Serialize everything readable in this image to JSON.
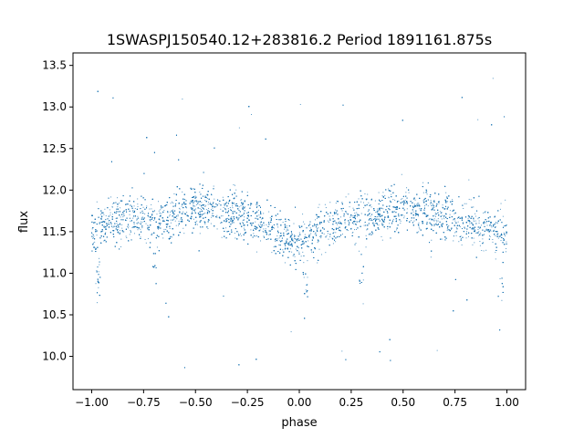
{
  "chart_data": {
    "type": "scatter",
    "title": "1SWASPJ150540.12+283816.2 Period 1891161.875s",
    "xlabel": "phase",
    "ylabel": "flux",
    "xlim": [
      -1.09,
      1.09
    ],
    "ylim": [
      9.6,
      13.65
    ],
    "x_ticks": [
      -1.0,
      -0.75,
      -0.5,
      -0.25,
      0.0,
      0.25,
      0.5,
      0.75,
      1.0
    ],
    "x_tick_labels": [
      "−1.00",
      "−0.75",
      "−0.50",
      "−0.25",
      "0.00",
      "0.25",
      "0.50",
      "0.75",
      "1.00"
    ],
    "y_ticks": [
      10.0,
      10.5,
      11.0,
      11.5,
      12.0,
      12.5,
      13.0,
      13.5
    ],
    "y_tick_labels": [
      "10.0",
      "10.5",
      "11.0",
      "11.5",
      "12.0",
      "12.5",
      "13.0",
      "13.5"
    ],
    "grid": false,
    "marker_color": "#1f77b4",
    "series": [
      {
        "x_range": [
          -1.0,
          1.0
        ],
        "sampled_median_curve": {
          "x": [
            -1.0,
            -0.9,
            -0.8,
            -0.7,
            -0.6,
            -0.5,
            -0.4,
            -0.3,
            -0.2,
            -0.1,
            0.0,
            0.1,
            0.2,
            0.3,
            0.4,
            0.5,
            0.6,
            0.7,
            0.8,
            0.9,
            1.0
          ],
          "y": [
            11.5,
            11.65,
            11.7,
            11.6,
            11.7,
            11.8,
            11.75,
            11.7,
            11.6,
            11.5,
            11.35,
            11.5,
            11.65,
            11.7,
            11.7,
            11.8,
            11.75,
            11.7,
            11.6,
            11.55,
            11.5
          ]
        },
        "typical_spread": 0.35,
        "dip_features": [
          {
            "x": -0.7,
            "y": 11.0
          },
          {
            "x": -0.97,
            "y": 10.9
          },
          {
            "x": 0.3,
            "y": 11.0
          },
          {
            "x": 0.03,
            "y": 10.9
          },
          {
            "x": 0.97,
            "y": 10.9
          }
        ]
      }
    ]
  }
}
